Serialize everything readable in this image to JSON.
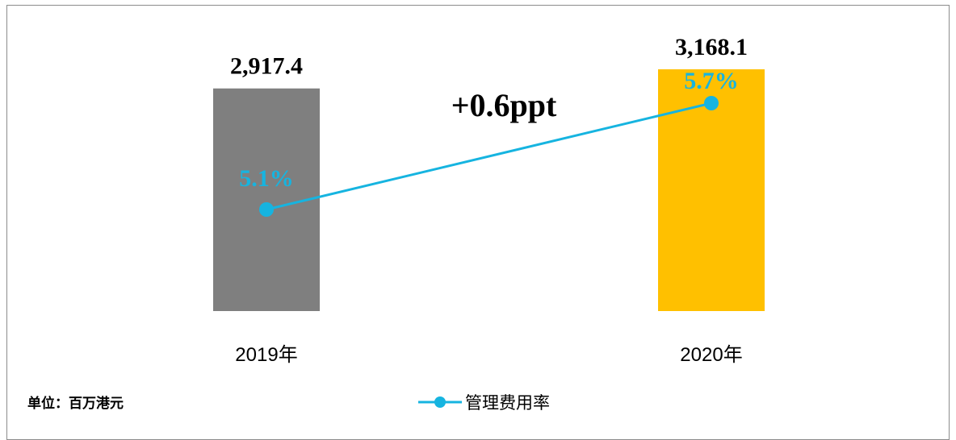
{
  "chart_data": {
    "type": "bar",
    "categories": [
      "2019年",
      "2020年"
    ],
    "series": [
      {
        "values": [
          2917.4,
          3168.1
        ],
        "colors": [
          "#7f7f7f",
          "#ffc000"
        ]
      },
      {
        "name": "管理费用率",
        "type": "line",
        "values": [
          5.1,
          5.7
        ],
        "color": "#16b4e0"
      }
    ],
    "bar_labels": [
      "2,917.4",
      "3,168.1"
    ],
    "line_labels": [
      "5.1%",
      "5.7%"
    ],
    "annotation": "+0.6ppt",
    "unit_note": "单位：百万港元",
    "legend_position": "bottom-center"
  }
}
